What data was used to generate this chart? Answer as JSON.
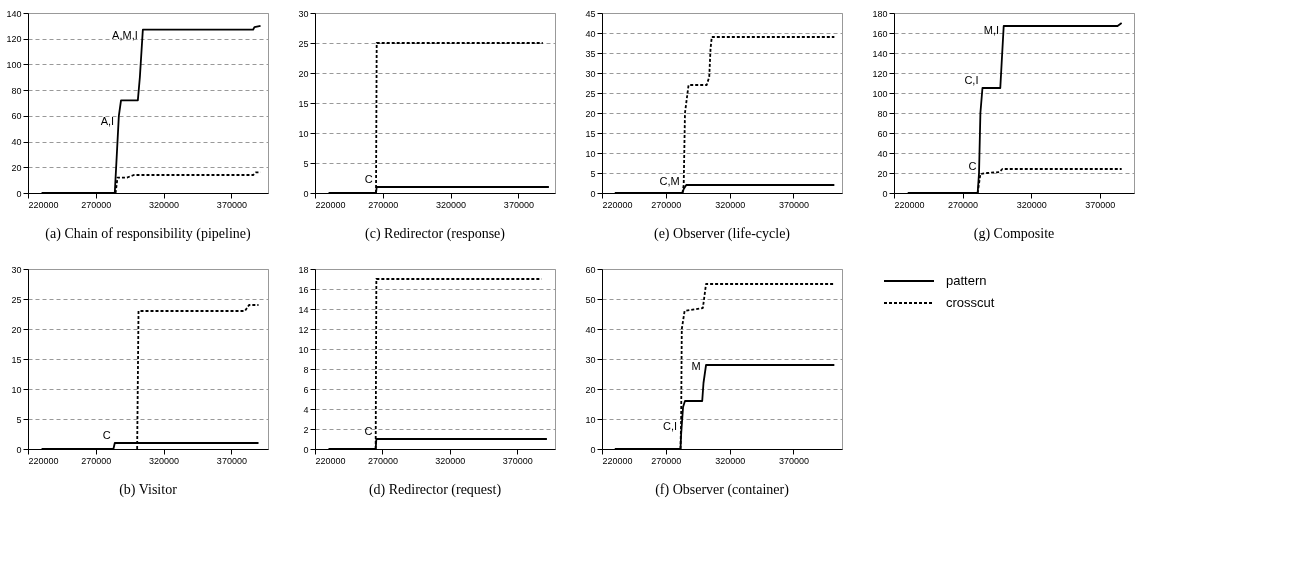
{
  "chart_data": [
    {
      "type": "line",
      "title": "(a)  Chain of responsibility (pipeline)",
      "xlim": [
        220000,
        397000
      ],
      "xticks": [
        220000,
        270000,
        320000,
        370000
      ],
      "ylim": [
        0,
        140
      ],
      "yticks": [
        0,
        20,
        40,
        60,
        80,
        100,
        120,
        140
      ],
      "grid": "y",
      "series": [
        {
          "color": "#000000",
          "line_style": "solid",
          "x": [
            230000,
            284000,
            285500,
            287000,
            288600,
            301000,
            302500,
            304700,
            386000,
            387000,
            391500
          ],
          "values": [
            0,
            0,
            30,
            60,
            72,
            72,
            90,
            127,
            127,
            129,
            130
          ]
        },
        {
          "color": "#000000",
          "line_style": "dashed",
          "x": [
            284600,
            286000,
            293000,
            298000,
            386000,
            388000,
            391500
          ],
          "values": [
            0,
            12,
            12,
            14,
            14,
            16,
            16
          ]
        }
      ],
      "annotations": [
        {
          "text": "A,M,I",
          "x": 303900,
          "y": 117
        },
        {
          "text": "A,I",
          "x": 286500,
          "y": 50
        }
      ]
    },
    {
      "type": "line",
      "title": "(c)  Redirector (response)",
      "xlim": [
        220000,
        397000
      ],
      "xticks": [
        220000,
        270000,
        320000,
        370000
      ],
      "ylim": [
        0,
        30
      ],
      "yticks": [
        0,
        5,
        10,
        15,
        20,
        25,
        30
      ],
      "grid": "y",
      "series": [
        {
          "color": "#000000",
          "line_style": "solid",
          "x": [
            230000,
            265000,
            265500,
            392500
          ],
          "values": [
            0,
            0,
            1,
            1
          ]
        },
        {
          "color": "#000000",
          "line_style": "dashed",
          "x": [
            265000,
            265500,
            388000
          ],
          "values": [
            0,
            25,
            25
          ]
        }
      ],
      "annotations": [
        {
          "text": "C",
          "x": 265500,
          "y": 1
        }
      ]
    },
    {
      "type": "line",
      "title": "(e)  Observer (life-cycle)",
      "xlim": [
        220000,
        408000
      ],
      "xticks": [
        220000,
        270000,
        320000,
        370000
      ],
      "ylim": [
        0,
        45
      ],
      "yticks": [
        0,
        5,
        10,
        15,
        20,
        25,
        30,
        35,
        40,
        45
      ],
      "grid": "y",
      "series": [
        {
          "color": "#000000",
          "line_style": "solid",
          "x": [
            230000,
            283000,
            284000,
            286000,
            402000
          ],
          "values": [
            0,
            0,
            1,
            2,
            2
          ]
        },
        {
          "color": "#000000",
          "line_style": "dashed",
          "x": [
            283000,
            284000,
            285000,
            287800,
            302000,
            304000,
            305000,
            306000,
            402000
          ],
          "values": [
            0,
            2,
            20,
            27,
            27,
            29,
            36,
            39,
            39
          ]
        }
      ],
      "annotations": [
        {
          "text": "C,M",
          "x": 284000,
          "y": 1
        }
      ]
    },
    {
      "type": "line",
      "title": "(g)  Composite",
      "xlim": [
        220000,
        395000
      ],
      "xticks": [
        220000,
        270000,
        320000,
        370000
      ],
      "ylim": [
        0,
        180
      ],
      "yticks": [
        0,
        20,
        40,
        60,
        80,
        100,
        120,
        140,
        160,
        180
      ],
      "grid": "y",
      "series": [
        {
          "color": "#000000",
          "line_style": "solid",
          "x": [
            230000,
            281000,
            282000,
            283000,
            284500,
            297500,
            298500,
            300000,
            383000,
            386000
          ],
          "values": [
            0,
            0,
            20,
            80,
            105,
            105,
            130,
            167,
            167,
            170
          ]
        },
        {
          "color": "#000000",
          "line_style": "dashed",
          "x": [
            281000,
            283000,
            288000,
            297000,
            299000,
            386000
          ],
          "values": [
            0,
            19,
            20,
            21,
            24,
            24
          ]
        }
      ],
      "annotations": [
        {
          "text": "M,I",
          "x": 299500,
          "y": 155
        },
        {
          "text": "C,I",
          "x": 284500,
          "y": 105
        },
        {
          "text": "C",
          "x": 283000,
          "y": 19
        }
      ]
    },
    {
      "type": "line",
      "title": "(b)  Visitor",
      "xlim": [
        220000,
        397000
      ],
      "xticks": [
        220000,
        270000,
        320000,
        370000
      ],
      "ylim": [
        0,
        30
      ],
      "yticks": [
        0,
        5,
        10,
        15,
        20,
        25,
        30
      ],
      "grid": "y",
      "series": [
        {
          "color": "#000000",
          "line_style": "solid",
          "x": [
            230000,
            283000,
            284000,
            390000
          ],
          "values": [
            0,
            0,
            1,
            1
          ]
        },
        {
          "color": "#000000",
          "line_style": "dashed",
          "x": [
            300500,
            301500,
            380000,
            383000,
            390000
          ],
          "values": [
            0,
            23,
            23,
            24,
            24
          ]
        }
      ],
      "annotations": [
        {
          "text": "C",
          "x": 284000,
          "y": 1
        }
      ]
    },
    {
      "type": "line",
      "title": "(d)  Redirector (request)",
      "xlim": [
        220000,
        398000
      ],
      "xticks": [
        220000,
        270000,
        320000,
        370000
      ],
      "ylim": [
        0,
        18
      ],
      "yticks": [
        0,
        2,
        4,
        6,
        8,
        10,
        12,
        14,
        16,
        18
      ],
      "grid": "y",
      "series": [
        {
          "color": "#000000",
          "line_style": "solid",
          "x": [
            230000,
            265000,
            265500,
            392000
          ],
          "values": [
            0,
            0,
            1,
            1
          ]
        },
        {
          "color": "#000000",
          "line_style": "dashed",
          "x": [
            265000,
            265500,
            388000
          ],
          "values": [
            0,
            17,
            17
          ]
        }
      ],
      "annotations": [
        {
          "text": "C",
          "x": 265500,
          "y": 1
        }
      ]
    },
    {
      "type": "line",
      "title": "(f)  Observer (container)",
      "xlim": [
        220000,
        408000
      ],
      "xticks": [
        220000,
        270000,
        320000,
        370000
      ],
      "ylim": [
        0,
        60
      ],
      "yticks": [
        0,
        10,
        20,
        30,
        40,
        50,
        60
      ],
      "grid": "y",
      "legend": "right",
      "series": [
        {
          "name": "pattern",
          "color": "#000000",
          "line_style": "solid",
          "x": [
            230000,
            281500,
            282000,
            283500,
            285000,
            298500,
            299500,
            301500,
            402000
          ],
          "values": [
            0,
            0,
            5,
            14,
            16,
            16,
            22,
            28,
            28
          ]
        },
        {
          "name": "crosscut",
          "color": "#000000",
          "line_style": "dashed",
          "x": [
            281500,
            282000,
            282500,
            284700,
            299000,
            301500,
            402000
          ],
          "values": [
            0,
            10,
            40,
            46,
            47,
            55,
            55
          ]
        }
      ],
      "annotations": [
        {
          "text": "M",
          "x": 300500,
          "y": 25
        },
        {
          "text": "C,I",
          "x": 282000,
          "y": 5
        }
      ]
    }
  ]
}
